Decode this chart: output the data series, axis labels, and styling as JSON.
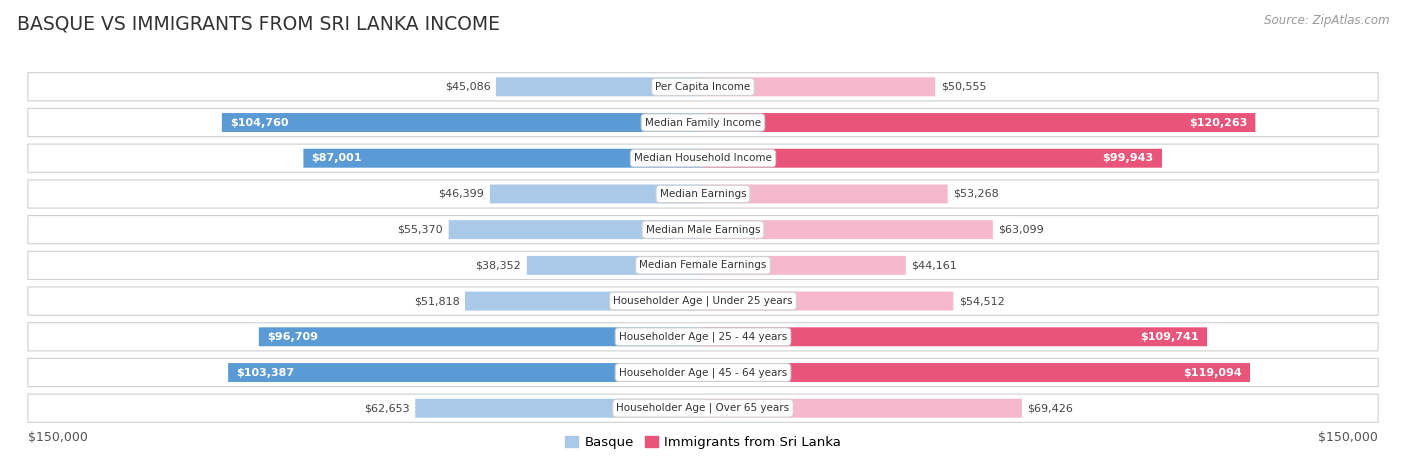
{
  "title": "BASQUE VS IMMIGRANTS FROM SRI LANKA INCOME",
  "source": "Source: ZipAtlas.com",
  "categories": [
    "Per Capita Income",
    "Median Family Income",
    "Median Household Income",
    "Median Earnings",
    "Median Male Earnings",
    "Median Female Earnings",
    "Householder Age | Under 25 years",
    "Householder Age | 25 - 44 years",
    "Householder Age | 45 - 64 years",
    "Householder Age | Over 65 years"
  ],
  "basque_values": [
    45086,
    104760,
    87001,
    46399,
    55370,
    38352,
    51818,
    96709,
    103387,
    62653
  ],
  "immigrant_values": [
    50555,
    120263,
    99943,
    53268,
    63099,
    44161,
    54512,
    109741,
    119094,
    69426
  ],
  "basque_labels": [
    "$45,086",
    "$104,760",
    "$87,001",
    "$46,399",
    "$55,370",
    "$38,352",
    "$51,818",
    "$96,709",
    "$103,387",
    "$62,653"
  ],
  "immigrant_labels": [
    "$50,555",
    "$120,263",
    "$99,943",
    "$53,268",
    "$63,099",
    "$44,161",
    "$54,512",
    "$109,741",
    "$119,094",
    "$69,426"
  ],
  "basque_color_light": "#aac8e8",
  "basque_color_dark": "#5b9bd5",
  "immigrant_color_light": "#f5b8cc",
  "immigrant_color_dark": "#e8547a",
  "inside_threshold": 75000,
  "max_value": 150000,
  "fig_bg": "#ffffff",
  "chart_bg": "#e8e8e8",
  "row_bg": "#f5f5f5",
  "legend_basque": "Basque",
  "legend_immigrant": "Immigrants from Sri Lanka",
  "xlabel_left": "$150,000",
  "xlabel_right": "$150,000",
  "title_color": "#333333",
  "label_inside_color": "#ffffff",
  "label_outside_color": "#555555",
  "label_fontsize": 8.0,
  "cat_fontsize": 7.5,
  "title_fontsize": 13.5
}
